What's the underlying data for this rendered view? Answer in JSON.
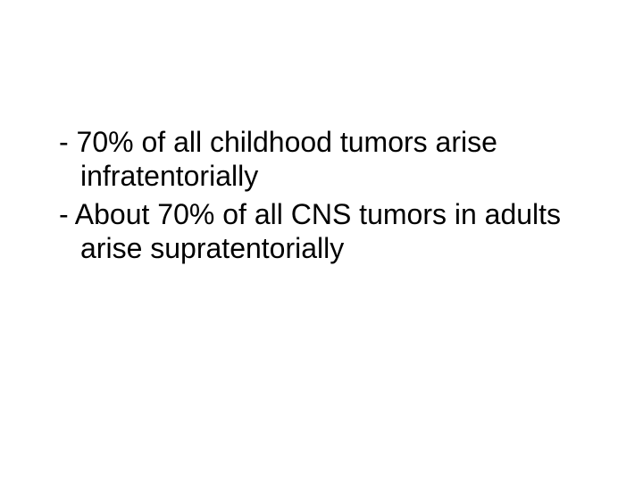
{
  "slide": {
    "background_color": "#ffffff",
    "text_color": "#000000",
    "font_family": "Arial",
    "font_size_pt": 32,
    "line_height": 1.2,
    "bullets": [
      {
        "text": "70% of all childhood tumors arise infratentorially"
      },
      {
        "text": "About 70% of all CNS tumors in adults arise supratentorially"
      }
    ]
  }
}
